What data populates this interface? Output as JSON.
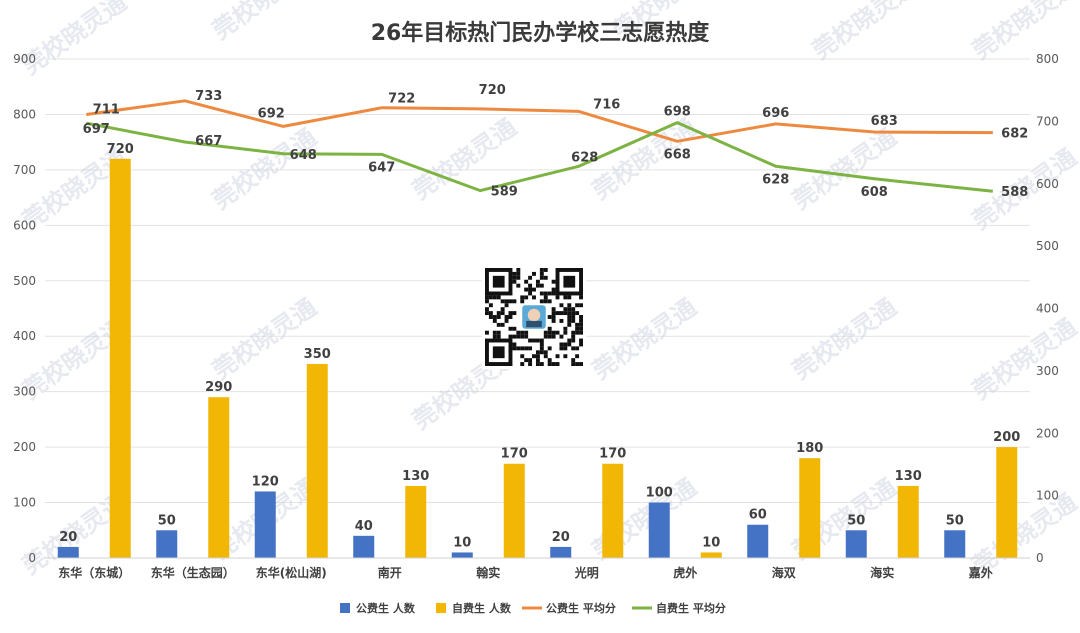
{
  "chart_data": {
    "type": "bar",
    "title": "26年目标热门民办学校三志愿热度",
    "categories": [
      "东华（东城）",
      "东华（生态园）",
      "东华(松山湖)",
      "南开",
      "翰实",
      "光明",
      "虎外",
      "海双",
      "海实",
      "嘉外"
    ],
    "series": [
      {
        "name": "公费生 人数",
        "type": "bar",
        "axis": "left",
        "color": "#4472C4",
        "values": [
          20,
          50,
          120,
          40,
          10,
          20,
          100,
          60,
          50,
          50
        ]
      },
      {
        "name": "自费生 人数",
        "type": "bar",
        "axis": "left",
        "color": "#F2B705",
        "values": [
          720,
          290,
          350,
          130,
          170,
          170,
          10,
          180,
          130,
          200
        ]
      },
      {
        "name": "公费生 平均分",
        "type": "line",
        "axis": "right",
        "color": "#ED8A3F",
        "values": [
          711,
          733,
          692,
          722,
          720,
          716,
          668,
          696,
          683,
          682
        ]
      },
      {
        "name": "自费生 平均分",
        "type": "line",
        "axis": "right",
        "color": "#7CB342",
        "values": [
          697,
          667,
          648,
          647,
          589,
          628,
          698,
          628,
          608,
          588
        ]
      }
    ],
    "left_axis": {
      "ylim": [
        0,
        900
      ],
      "ticks": [
        "0",
        "100",
        "200",
        "300",
        "400",
        "500",
        "600",
        "700",
        "800",
        "900"
      ]
    },
    "right_axis": {
      "ylim": [
        0,
        800
      ],
      "ticks": [
        "0",
        "100",
        "200",
        "300",
        "400",
        "500",
        "600",
        "700",
        "800"
      ]
    },
    "grid": true,
    "legend_position": "bottom"
  },
  "watermark_text": "莞校晓灵通"
}
